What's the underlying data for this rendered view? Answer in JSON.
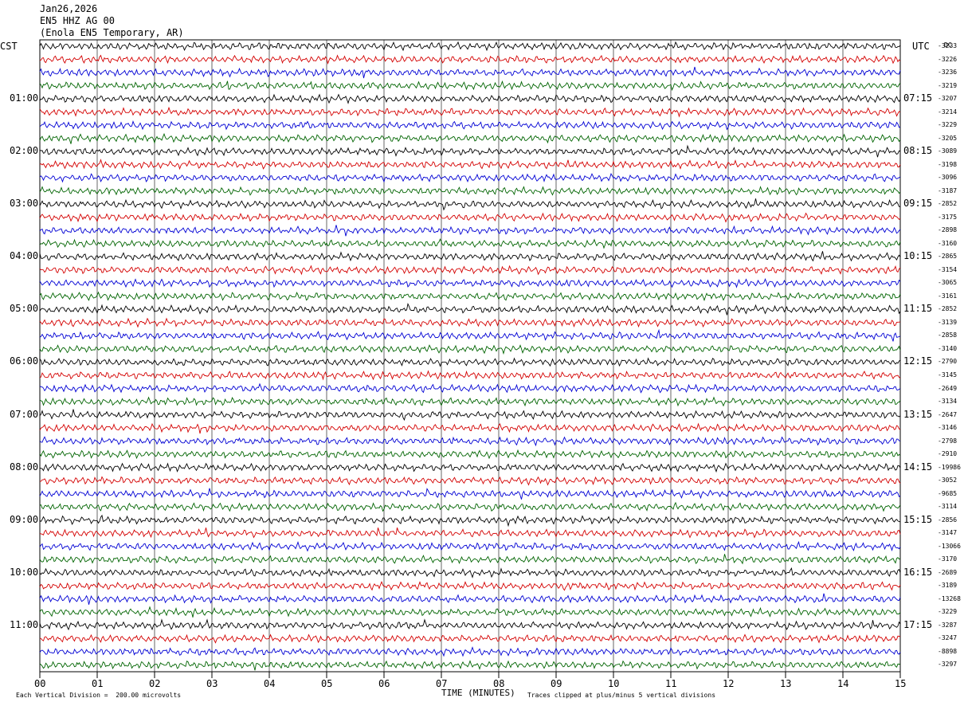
{
  "header": {
    "date": "Jan26,2026",
    "station": "EN5 HHZ AG 00",
    "location": "(Enola EN5 Temporary, AR)"
  },
  "left_tz": "CST",
  "right_tz": "UTC",
  "dc_label": "DC",
  "chart_data": {
    "type": "line",
    "title": "",
    "xlabel": "TIME (MINUTES)",
    "x_ticks": [
      "00",
      "01",
      "02",
      "03",
      "04",
      "05",
      "06",
      "07",
      "08",
      "09",
      "10",
      "11",
      "12",
      "13",
      "14",
      "15"
    ],
    "xlim": [
      0,
      15
    ],
    "left_hour_labels": [
      "01:00",
      "02:00",
      "03:00",
      "04:00",
      "05:00",
      "06:00",
      "07:00",
      "08:00",
      "09:00",
      "10:00",
      "11:00"
    ],
    "right_hour_labels": [
      "07:15",
      "08:15",
      "09:15",
      "10:15",
      "11:15",
      "12:15",
      "13:15",
      "14:15",
      "15:15",
      "16:15",
      "17:15"
    ],
    "trace_colors": [
      "#000000",
      "#d40000",
      "#0000d4",
      "#006400"
    ],
    "trace_count": 48,
    "dc_offsets": [
      "-3233",
      "-3226",
      "-3236",
      "-3219",
      "-3207",
      "-3214",
      "-3229",
      "-3205",
      "-3089",
      "-3198",
      "-3096",
      "-3187",
      "-2852",
      "-3175",
      "-2898",
      "-3160",
      "-2865",
      "-3154",
      "-3065",
      "-3161",
      "-2852",
      "-3139",
      "-2858",
      "-3140",
      "-2790",
      "-3145",
      "-2649",
      "-3134",
      "-2647",
      "-3146",
      "-2798",
      "-2910",
      "-19986",
      "-3052",
      "-9685",
      "-3114",
      "-2856",
      "-3147",
      "-13066",
      "-3170",
      "-2689",
      "-3189",
      "-13268",
      "-3229",
      "-3287",
      "-3247",
      "-8898",
      "-3297"
    ]
  },
  "footer": {
    "scale": "Each Vertical Division =  200.00 microvolts",
    "clip": "Traces clipped at plus/minus 5 vertical divisions"
  }
}
